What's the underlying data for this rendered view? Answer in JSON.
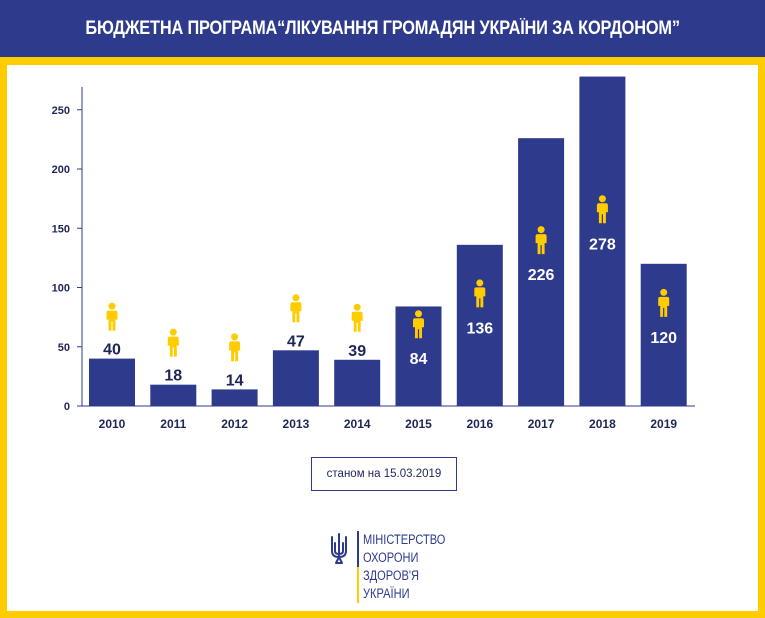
{
  "header": {
    "title": "БЮДЖЕТНА ПРОГРАМА“ЛІКУВАННЯ ГРОМАДЯН УКРАЇНИ  ЗА КОРДОНОМ”"
  },
  "note": {
    "as_of": "станом на 15.03.2019"
  },
  "logo": {
    "lines": [
      "МІНІСТЕРСТВО",
      "ОХОРОНИ",
      "ЗДОРОВ'Я",
      "УКРАЇНИ"
    ]
  },
  "colors": {
    "bar": "#2e3a8c",
    "accent": "#ffcc00",
    "label_dark": "#1f2657",
    "label_light": "#ffffff"
  },
  "chart_data": {
    "type": "bar",
    "categories": [
      "2010",
      "2011",
      "2012",
      "2013",
      "2014",
      "2015",
      "2016",
      "2017",
      "2018",
      "2019"
    ],
    "values": [
      40,
      18,
      14,
      47,
      39,
      84,
      136,
      226,
      278,
      120
    ],
    "data_labels": [
      "40",
      "18",
      "14",
      "47",
      "39",
      "84",
      "136",
      "226",
      "278",
      "120"
    ],
    "ylim": [
      0,
      290
    ],
    "yticks": [
      0,
      50,
      100,
      150,
      200,
      250
    ],
    "icon": "person-icon",
    "grid": false,
    "legend": "none"
  }
}
